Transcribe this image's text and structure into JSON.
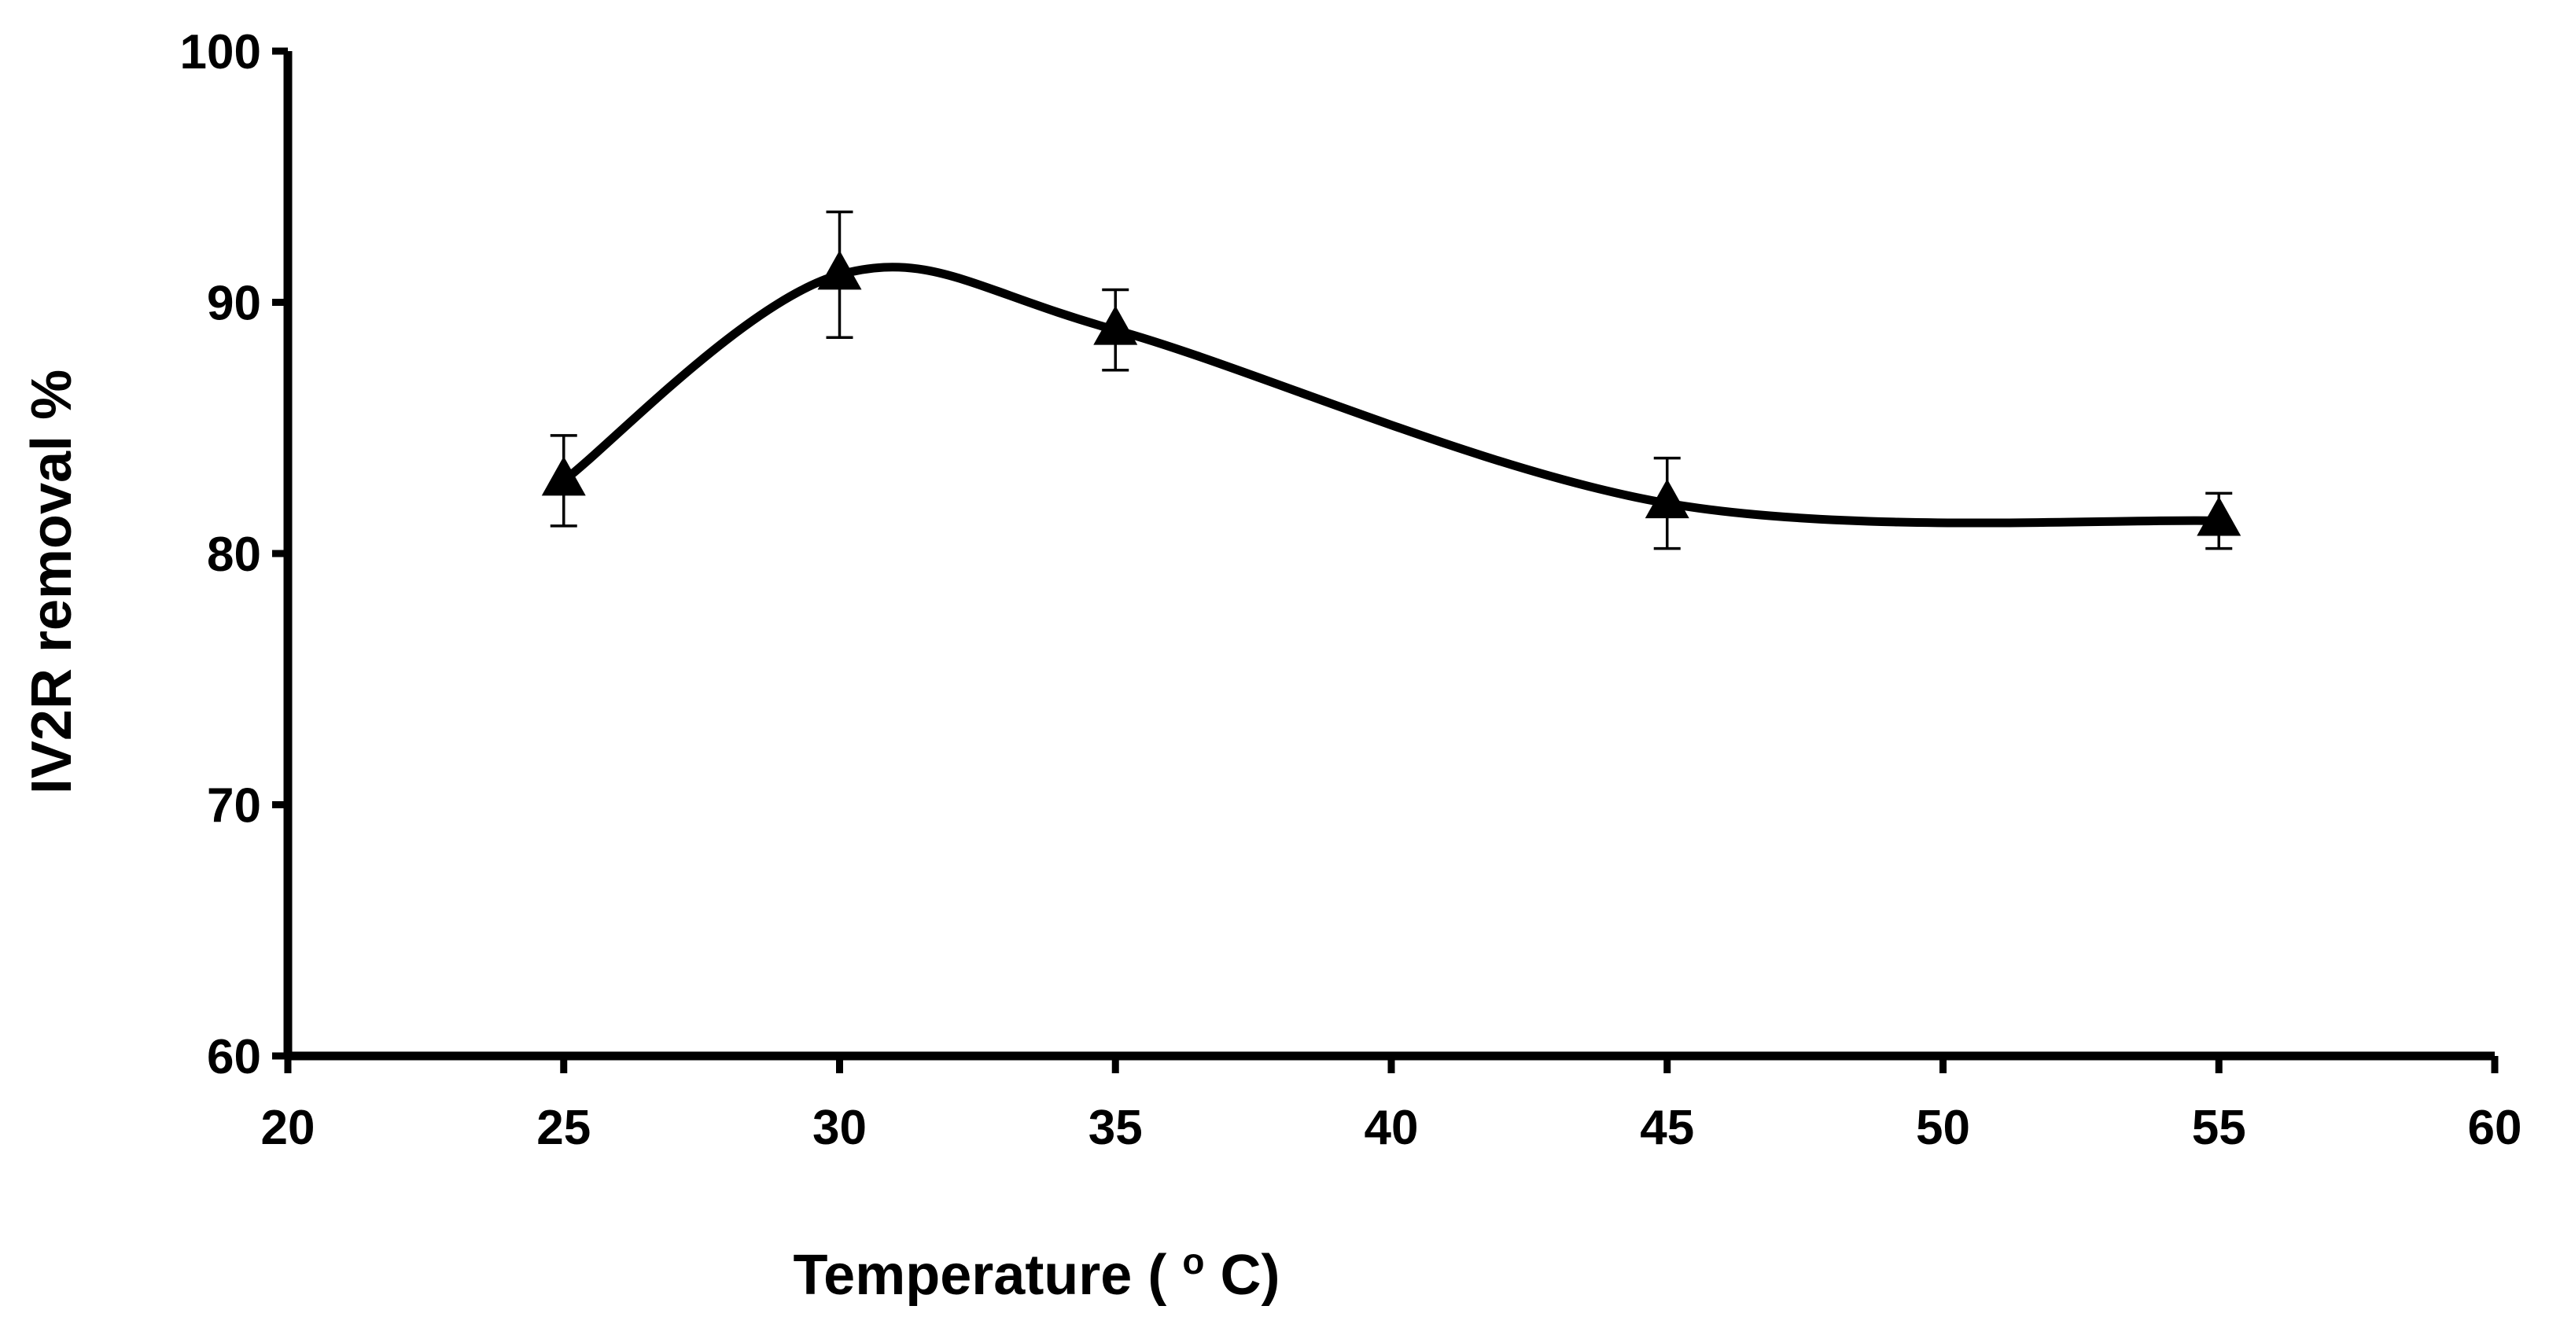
{
  "chart_data": {
    "type": "line",
    "title": "",
    "xlabel": "Temperature (oC)",
    "xlabel_main": "Temperature (",
    "xlabel_superscript": "o",
    "xlabel_tail": "C)",
    "ylabel": "IV2R removal %",
    "xlim": [
      20,
      60
    ],
    "ylim": [
      60,
      100
    ],
    "x_ticks": [
      20,
      25,
      30,
      35,
      40,
      45,
      50,
      55,
      60
    ],
    "y_ticks": [
      60,
      70,
      80,
      90,
      100
    ],
    "x_tick_labels": [
      "20",
      "25",
      "30",
      "35",
      "40",
      "45",
      "50",
      "55",
      "60"
    ],
    "y_tick_labels": [
      "60",
      "70",
      "80",
      "90",
      "100"
    ],
    "grid": false,
    "smooth": true,
    "marker": "triangle",
    "series": [
      {
        "name": "IV2R removal",
        "x": [
          25,
          30,
          35,
          45,
          55
        ],
        "y": [
          82.9,
          91.1,
          88.9,
          82.0,
          81.3
        ],
        "error": [
          1.8,
          2.5,
          1.6,
          1.8,
          1.1
        ]
      }
    ]
  },
  "colors": {
    "line": "#000000",
    "background": "#ffffff"
  }
}
